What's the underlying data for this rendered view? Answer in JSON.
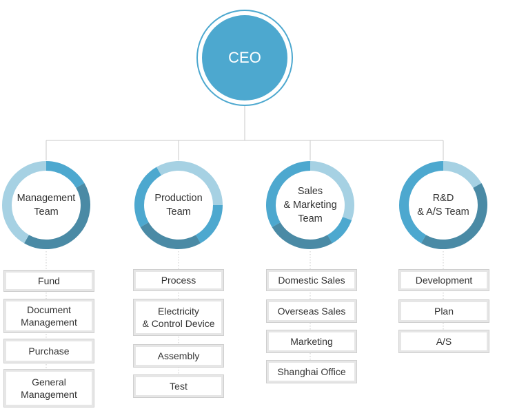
{
  "ceo": {
    "label": "CEO"
  },
  "colors": {
    "primary": "#4da8cf",
    "light": "#a6d1e3",
    "dark": "#4a8aa5",
    "line": "#c8c8c8"
  },
  "teams": [
    {
      "label": "Management\nTeam",
      "items": [
        "Fund",
        "Document\nManagement",
        "Purchase",
        "General\nManagement"
      ]
    },
    {
      "label": "Production\nTeam",
      "items": [
        "Process",
        "Electricity\n& Control Device",
        "Assembly",
        "Test"
      ]
    },
    {
      "label": "Sales\n& Marketing\nTeam",
      "items": [
        "Domestic Sales",
        "Overseas Sales",
        "Marketing",
        "Shanghai Office"
      ]
    },
    {
      "label": "R&D\n& A/S Team",
      "items": [
        "Development",
        "Plan",
        "A/S"
      ]
    }
  ]
}
